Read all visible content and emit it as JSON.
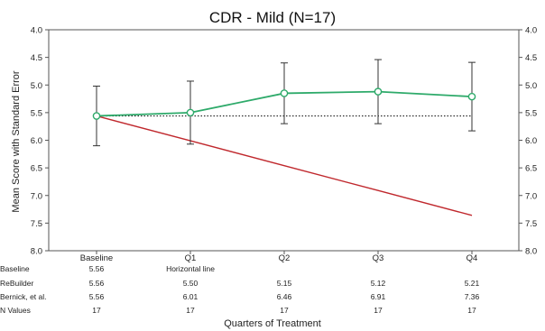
{
  "chart_data": {
    "type": "line",
    "title": "CDR - Mild (N=17)",
    "xlabel": "Quarters of Treatment",
    "ylabel": "Mean Score with Standard Error",
    "categories": [
      "Baseline",
      "Q1",
      "Q2",
      "Q3",
      "Q4"
    ],
    "yticks": [
      "4.0",
      "4.5",
      "5.0",
      "5.5",
      "6.0",
      "6.5",
      "7.0",
      "7.5",
      "8.0"
    ],
    "ylim": [
      4.0,
      8.0
    ],
    "y_inverted": true,
    "series": [
      {
        "name": "ReBuilder",
        "values": [
          5.56,
          5.5,
          5.15,
          5.12,
          5.21
        ],
        "error": [
          0.54,
          0.57,
          0.55,
          0.58,
          0.62
        ],
        "color": "#2eaa6a"
      },
      {
        "name": "Bernick, et al.",
        "values": [
          5.56,
          6.01,
          6.46,
          6.91,
          7.36
        ],
        "color": "#c0282d"
      },
      {
        "name": "Baseline",
        "values": [
          5.56,
          5.56,
          5.56,
          5.56,
          5.56
        ],
        "color": "#222222"
      }
    ],
    "table": {
      "rows": [
        {
          "label": "Baseline",
          "cells": [
            "5.56",
            "Horizontal line",
            "",
            "",
            ""
          ]
        },
        {
          "label": "ReBuilder",
          "cells": [
            "5.56",
            "5.50",
            "5.15",
            "5.12",
            "5.21"
          ]
        },
        {
          "label": "Bernick, et al.",
          "cells": [
            "5.56",
            "6.01",
            "6.46",
            "6.91",
            "7.36"
          ]
        },
        {
          "label": "N Values",
          "cells": [
            "17",
            "17",
            "17",
            "17",
            "17"
          ]
        }
      ]
    }
  }
}
